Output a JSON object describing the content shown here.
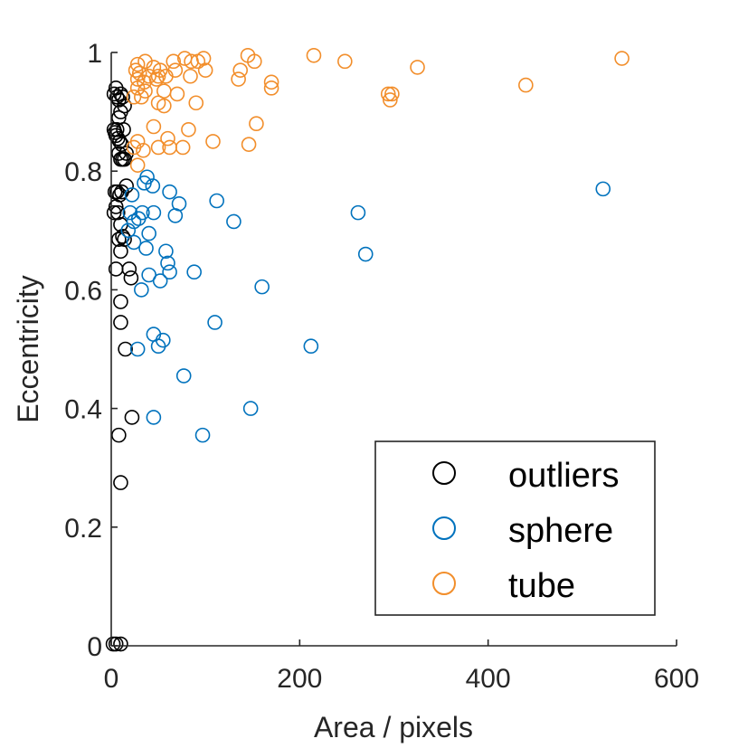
{
  "chart_data": {
    "type": "scatter",
    "title": "",
    "xlabel": "Area / pixels",
    "ylabel": "Eccentricity",
    "xlim": [
      0,
      600
    ],
    "ylim": [
      0,
      1
    ],
    "xticks": [
      0,
      200,
      400,
      600
    ],
    "yticks": [
      0,
      0.2,
      0.4,
      0.6,
      0.8,
      1
    ],
    "xtick_labels": [
      "0",
      "200",
      "400",
      "600"
    ],
    "ytick_labels": [
      "0",
      "0.2",
      "0.4",
      "0.6",
      "0.8",
      "1"
    ],
    "grid": false,
    "legend_position": "bottom-right",
    "marker": "open-circle",
    "series": [
      {
        "name": "outliers",
        "color": "#000000",
        "points": [
          [
            3,
            0.93
          ],
          [
            5,
            0.94
          ],
          [
            6,
            0.925
          ],
          [
            8,
            0.92
          ],
          [
            10,
            0.93
          ],
          [
            12,
            0.925
          ],
          [
            14,
            0.91
          ],
          [
            3,
            0.87
          ],
          [
            4,
            0.865
          ],
          [
            6,
            0.87
          ],
          [
            8,
            0.89
          ],
          [
            10,
            0.9
          ],
          [
            5,
            0.86
          ],
          [
            7,
            0.855
          ],
          [
            9,
            0.85
          ],
          [
            11,
            0.845
          ],
          [
            13,
            0.87
          ],
          [
            8,
            0.83
          ],
          [
            10,
            0.82
          ],
          [
            12,
            0.82
          ],
          [
            14,
            0.82
          ],
          [
            16,
            0.83
          ],
          [
            4,
            0.765
          ],
          [
            6,
            0.765
          ],
          [
            9,
            0.76
          ],
          [
            11,
            0.765
          ],
          [
            16,
            0.775
          ],
          [
            5,
            0.74
          ],
          [
            3,
            0.73
          ],
          [
            7,
            0.73
          ],
          [
            10,
            0.71
          ],
          [
            12,
            0.69
          ],
          [
            14,
            0.685
          ],
          [
            8,
            0.685
          ],
          [
            10,
            0.665
          ],
          [
            5,
            0.635
          ],
          [
            19,
            0.635
          ],
          [
            21,
            0.62
          ],
          [
            10,
            0.58
          ],
          [
            10,
            0.545
          ],
          [
            15,
            0.5
          ],
          [
            22,
            0.385
          ],
          [
            8,
            0.355
          ],
          [
            10,
            0.275
          ],
          [
            2,
            0.003
          ],
          [
            5,
            0.003
          ],
          [
            10,
            0.003
          ]
        ]
      },
      {
        "name": "sphere",
        "color": "#0072BD",
        "points": [
          [
            38,
            0.79
          ],
          [
            35,
            0.78
          ],
          [
            44,
            0.775
          ],
          [
            22,
            0.76
          ],
          [
            62,
            0.765
          ],
          [
            112,
            0.75
          ],
          [
            72,
            0.745
          ],
          [
            20,
            0.73
          ],
          [
            33,
            0.73
          ],
          [
            45,
            0.73
          ],
          [
            68,
            0.725
          ],
          [
            24,
            0.715
          ],
          [
            29,
            0.72
          ],
          [
            130,
            0.715
          ],
          [
            262,
            0.73
          ],
          [
            522,
            0.77
          ],
          [
            18,
            0.7
          ],
          [
            40,
            0.695
          ],
          [
            24,
            0.68
          ],
          [
            37,
            0.67
          ],
          [
            58,
            0.665
          ],
          [
            60,
            0.645
          ],
          [
            62,
            0.63
          ],
          [
            40,
            0.625
          ],
          [
            52,
            0.615
          ],
          [
            88,
            0.63
          ],
          [
            270,
            0.66
          ],
          [
            32,
            0.6
          ],
          [
            160,
            0.605
          ],
          [
            110,
            0.545
          ],
          [
            45,
            0.525
          ],
          [
            55,
            0.515
          ],
          [
            50,
            0.505
          ],
          [
            28,
            0.5
          ],
          [
            212,
            0.505
          ],
          [
            77,
            0.455
          ],
          [
            148,
            0.4
          ],
          [
            45,
            0.385
          ],
          [
            97,
            0.355
          ]
        ]
      },
      {
        "name": "tube",
        "color": "#F28E2B",
        "points": [
          [
            28,
            0.98
          ],
          [
            36,
            0.985
          ],
          [
            45,
            0.975
          ],
          [
            52,
            0.97
          ],
          [
            66,
            0.985
          ],
          [
            78,
            0.99
          ],
          [
            85,
            0.985
          ],
          [
            92,
            0.985
          ],
          [
            98,
            0.99
          ],
          [
            145,
            0.995
          ],
          [
            152,
            0.985
          ],
          [
            215,
            0.995
          ],
          [
            248,
            0.985
          ],
          [
            325,
            0.975
          ],
          [
            542,
            0.99
          ],
          [
            26,
            0.97
          ],
          [
            30,
            0.965
          ],
          [
            40,
            0.96
          ],
          [
            50,
            0.96
          ],
          [
            58,
            0.96
          ],
          [
            68,
            0.97
          ],
          [
            84,
            0.96
          ],
          [
            100,
            0.97
          ],
          [
            137,
            0.97
          ],
          [
            28,
            0.955
          ],
          [
            35,
            0.95
          ],
          [
            48,
            0.955
          ],
          [
            135,
            0.955
          ],
          [
            170,
            0.95
          ],
          [
            170,
            0.94
          ],
          [
            440,
            0.945
          ],
          [
            28,
            0.94
          ],
          [
            36,
            0.935
          ],
          [
            56,
            0.935
          ],
          [
            70,
            0.93
          ],
          [
            294,
            0.93
          ],
          [
            298,
            0.93
          ],
          [
            296,
            0.92
          ],
          [
            24,
            0.925
          ],
          [
            32,
            0.925
          ],
          [
            50,
            0.915
          ],
          [
            56,
            0.91
          ],
          [
            90,
            0.915
          ],
          [
            154,
            0.88
          ],
          [
            45,
            0.875
          ],
          [
            82,
            0.87
          ],
          [
            60,
            0.855
          ],
          [
            108,
            0.85
          ],
          [
            28,
            0.85
          ],
          [
            24,
            0.84
          ],
          [
            34,
            0.835
          ],
          [
            50,
            0.84
          ],
          [
            62,
            0.84
          ],
          [
            76,
            0.84
          ],
          [
            146,
            0.845
          ],
          [
            28,
            0.81
          ]
        ]
      }
    ]
  }
}
